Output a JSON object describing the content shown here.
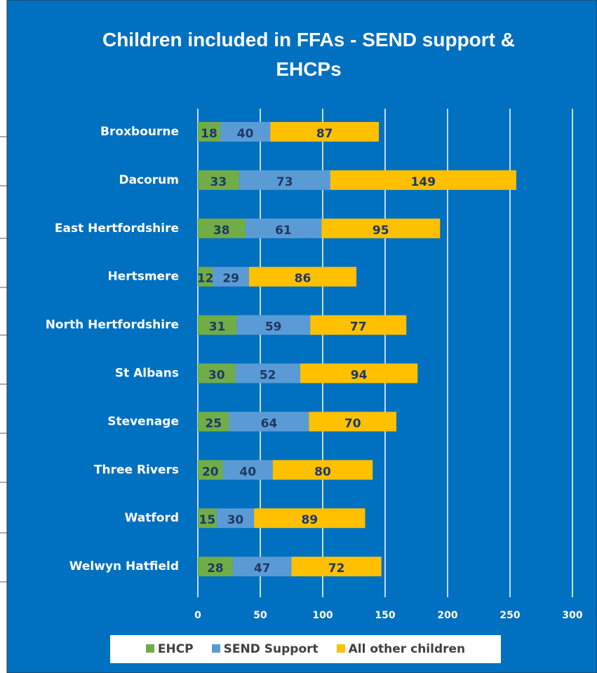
{
  "chart_data": {
    "type": "bar",
    "orientation": "horizontal",
    "stacked": true,
    "title": "Children included in FFAs - SEND support & EHCPs",
    "categories": [
      "Broxbourne",
      "Dacorum",
      "East Hertfordshire",
      "Hertsmere",
      "North Hertfordshire",
      "St Albans",
      "Stevenage",
      "Three Rivers",
      "Watford",
      "Welwyn Hatfield"
    ],
    "series": [
      {
        "name": "EHCP",
        "color": "#70ad47",
        "values": [
          18,
          33,
          38,
          12,
          31,
          30,
          25,
          20,
          15,
          28
        ]
      },
      {
        "name": "SEND Support",
        "color": "#5b9bd5",
        "values": [
          40,
          73,
          61,
          29,
          59,
          52,
          64,
          40,
          30,
          47
        ]
      },
      {
        "name": "All other children",
        "color": "#ffc000",
        "values": [
          87,
          149,
          95,
          86,
          77,
          94,
          70,
          80,
          89,
          72
        ]
      }
    ],
    "xlim": [
      0,
      300
    ],
    "xticks": [
      0,
      50,
      100,
      150,
      200,
      250,
      300
    ],
    "grid": true,
    "legend": "bottom"
  }
}
